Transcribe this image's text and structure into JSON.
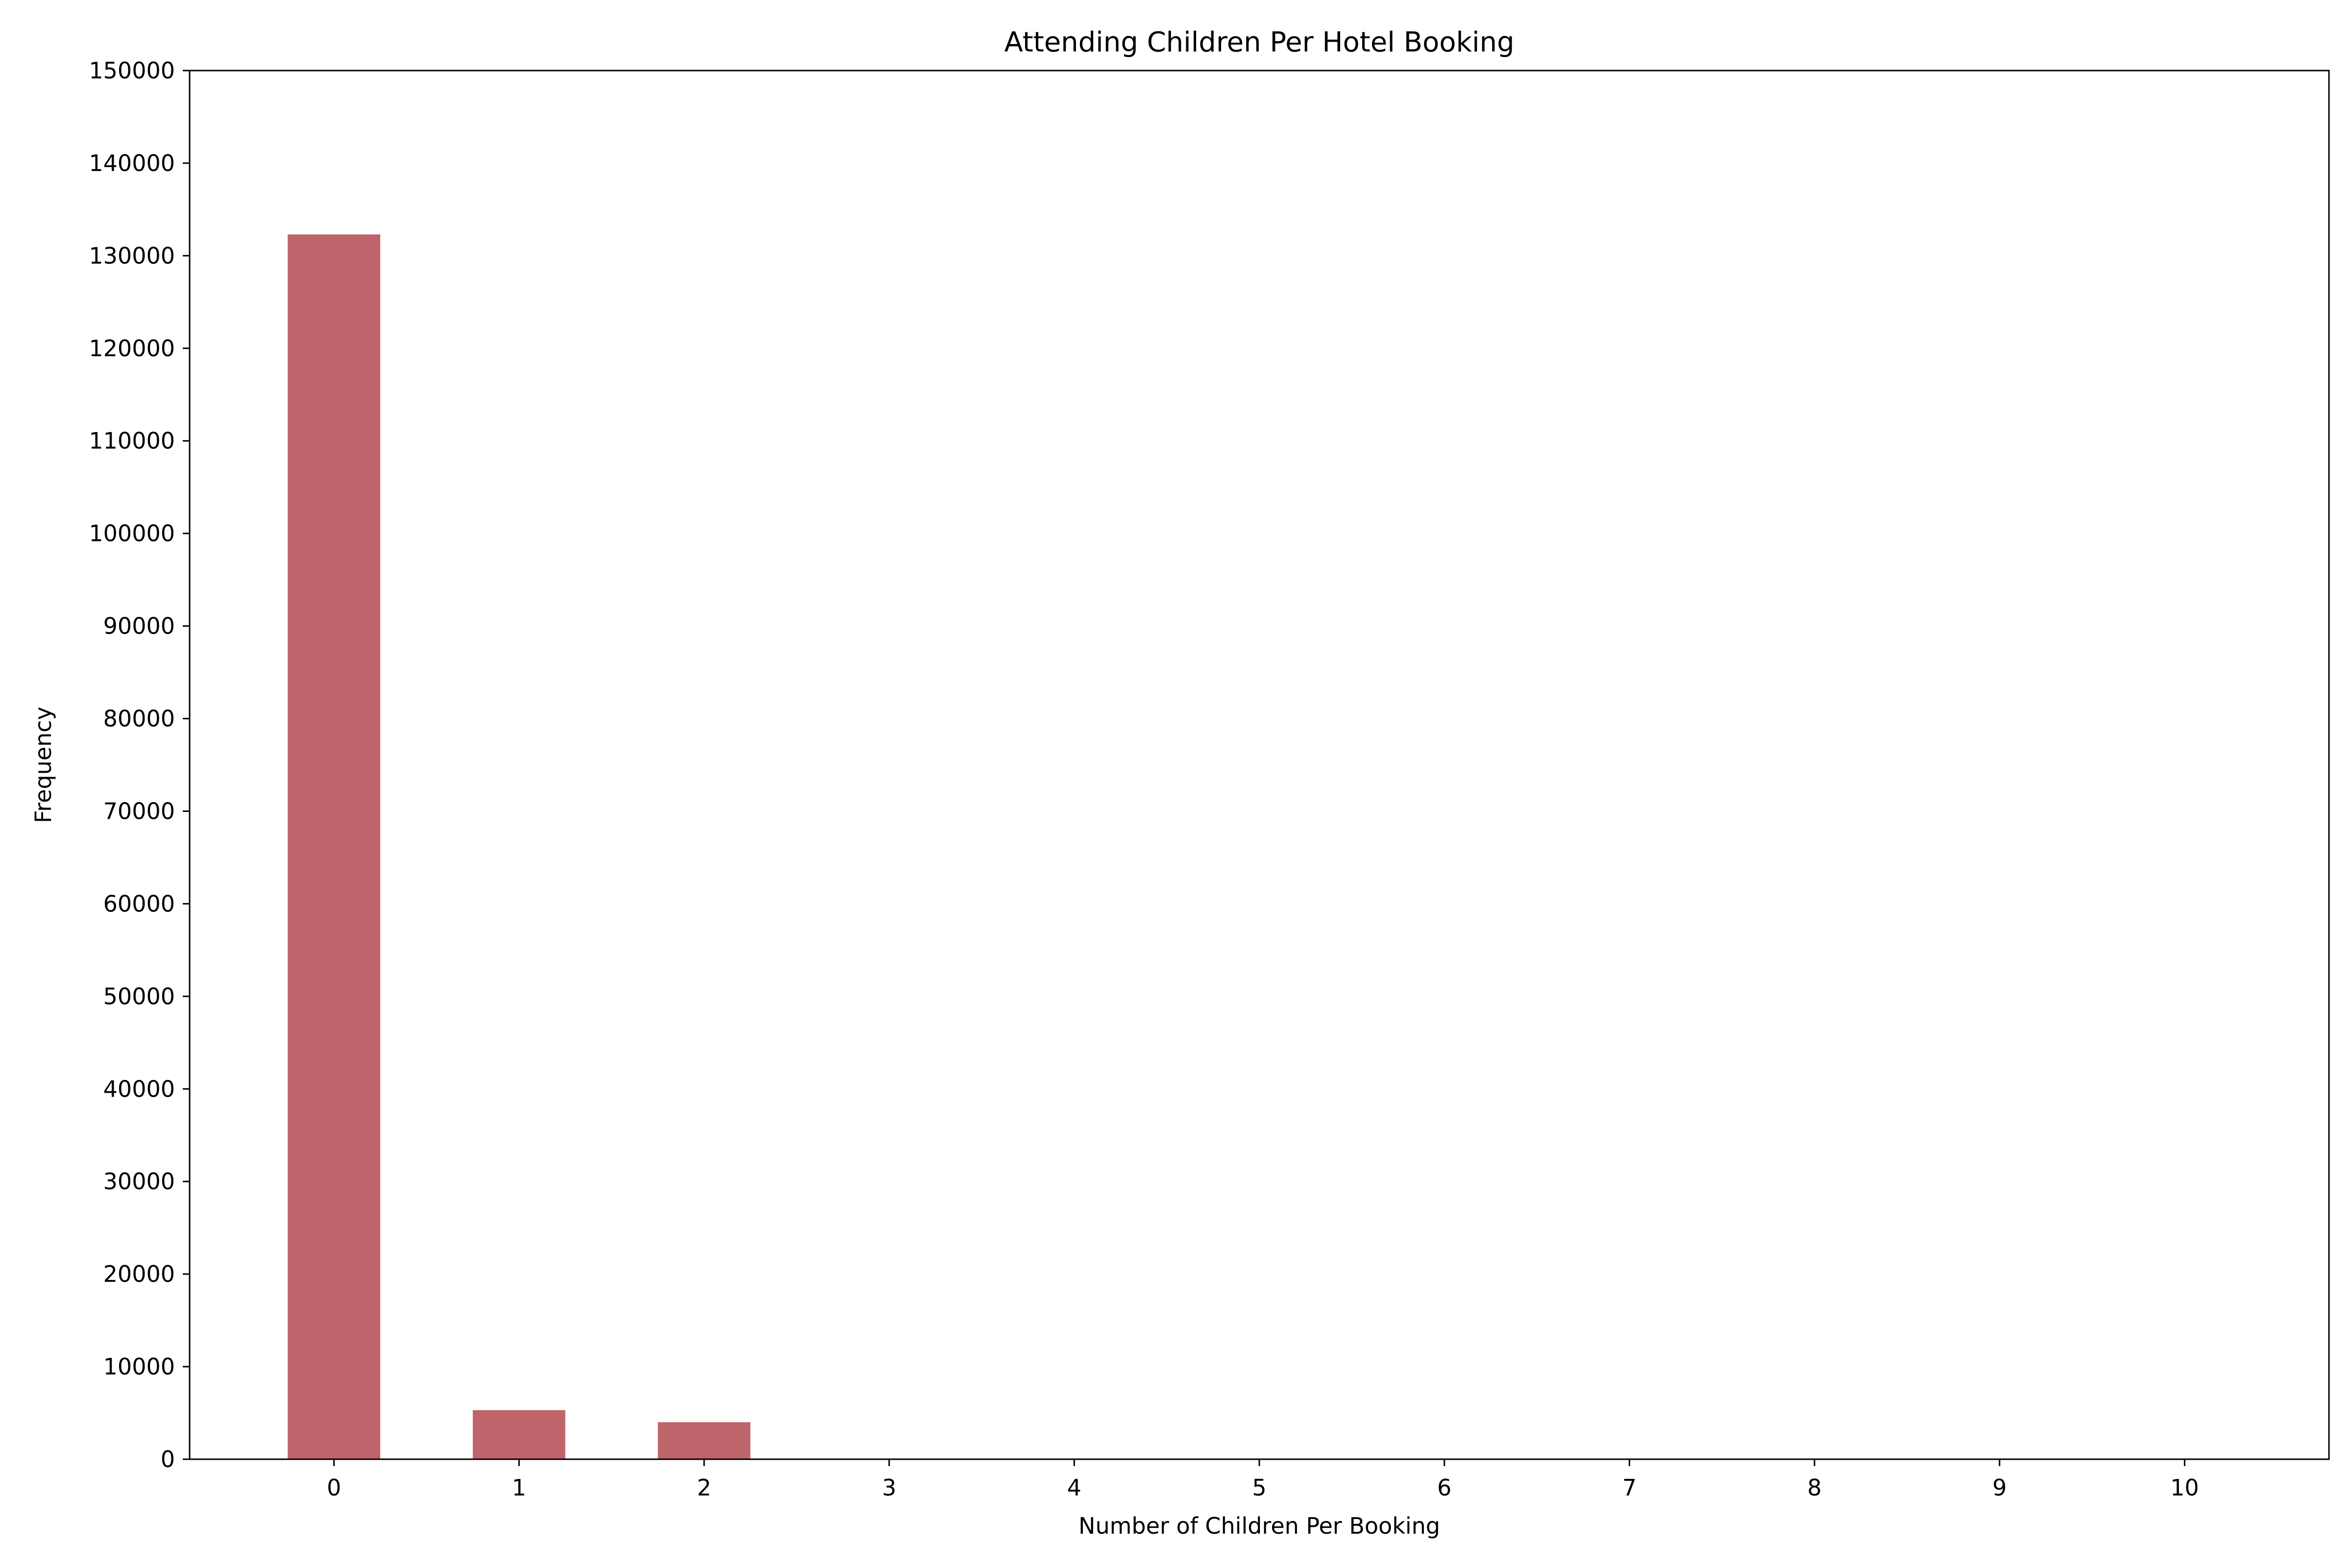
{
  "chart_data": {
    "type": "bar",
    "title": "Attending Children Per Hotel Booking",
    "xlabel": "Number of Children Per Booking",
    "ylabel": "Frequency",
    "categories": [
      "0",
      "1",
      "2",
      "3",
      "4",
      "5",
      "6",
      "7",
      "8",
      "9",
      "10"
    ],
    "values": [
      132300,
      5300,
      4000,
      0,
      0,
      0,
      0,
      0,
      0,
      0,
      0
    ],
    "xlim": [
      -0.78,
      10.78
    ],
    "ylim": [
      0,
      150000
    ],
    "yticks": [
      "0",
      "10000",
      "20000",
      "30000",
      "40000",
      "50000",
      "60000",
      "70000",
      "80000",
      "90000",
      "100000",
      "110000",
      "120000",
      "130000",
      "140000",
      "150000"
    ],
    "bar_color": "#bf646b",
    "grid": false,
    "legend": "none"
  }
}
